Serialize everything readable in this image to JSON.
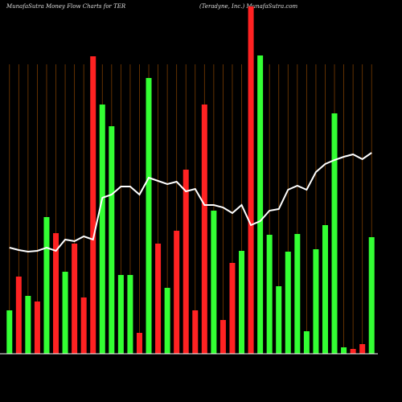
{
  "chart_data": {
    "type": "bar-line",
    "title": "MunafaSutra  Money Flow  Charts for TER",
    "subtitle": "(Teradyne, Inc.) MunafaSutra.com",
    "categories": [
      null,
      null,
      null,
      null,
      null,
      null,
      null,
      null,
      null,
      null,
      null,
      null,
      null,
      null,
      null,
      null,
      null,
      null,
      null,
      null,
      null,
      null,
      null,
      null,
      null,
      null,
      null,
      null,
      null,
      null,
      null,
      null,
      null,
      null,
      null,
      null,
      null,
      null,
      null,
      null
    ],
    "series": [
      {
        "type": "bar",
        "values": [
          54,
          96,
          72,
          65,
          170,
          150,
          102,
          137,
          70,
          370,
          310,
          283,
          98,
          98,
          26,
          343,
          137,
          82,
          153,
          229,
          54,
          310,
          178,
          42,
          113,
          128,
          432,
          371,
          148,
          84,
          127,
          149,
          28,
          130,
          160,
          299,
          8,
          6,
          12,
          145
        ],
        "colors": [
          "#33ff33",
          "#ff2222",
          "#33ff33",
          "#ff2222",
          "#33ff33",
          "#ff2222",
          "#33ff33",
          "#ff2222",
          "#ff2222",
          "#ff2222",
          "#33ff33",
          "#33ff33",
          "#33ff33",
          "#33ff33",
          "#ff2222",
          "#33ff33",
          "#ff2222",
          "#33ff33",
          "#ff2222",
          "#ff2222",
          "#ff2222",
          "#ff2222",
          "#33ff33",
          "#ff2222",
          "#ff2222",
          "#33ff33",
          "#ff2222",
          "#33ff33",
          "#33ff33",
          "#33ff33",
          "#33ff33",
          "#33ff33",
          "#33ff33",
          "#33ff33",
          "#33ff33",
          "#33ff33",
          "#33ff33",
          "#ff2222",
          "#ff2222",
          "#33ff33"
        ]
      },
      {
        "type": "line",
        "color": "#ffffff",
        "values": [
          132,
          129,
          127,
          128,
          132,
          128,
          142,
          140,
          146,
          142,
          194,
          198,
          208,
          208,
          198,
          219,
          215,
          211,
          214,
          202,
          205,
          185,
          185,
          182,
          175,
          185,
          160,
          165,
          178,
          180,
          204,
          209,
          204,
          226,
          236,
          241,
          245,
          248,
          242,
          250
        ]
      }
    ],
    "ylim": [
      0,
      440
    ],
    "grid": true,
    "grid_color": "#7a3c00",
    "background": "#000000"
  }
}
